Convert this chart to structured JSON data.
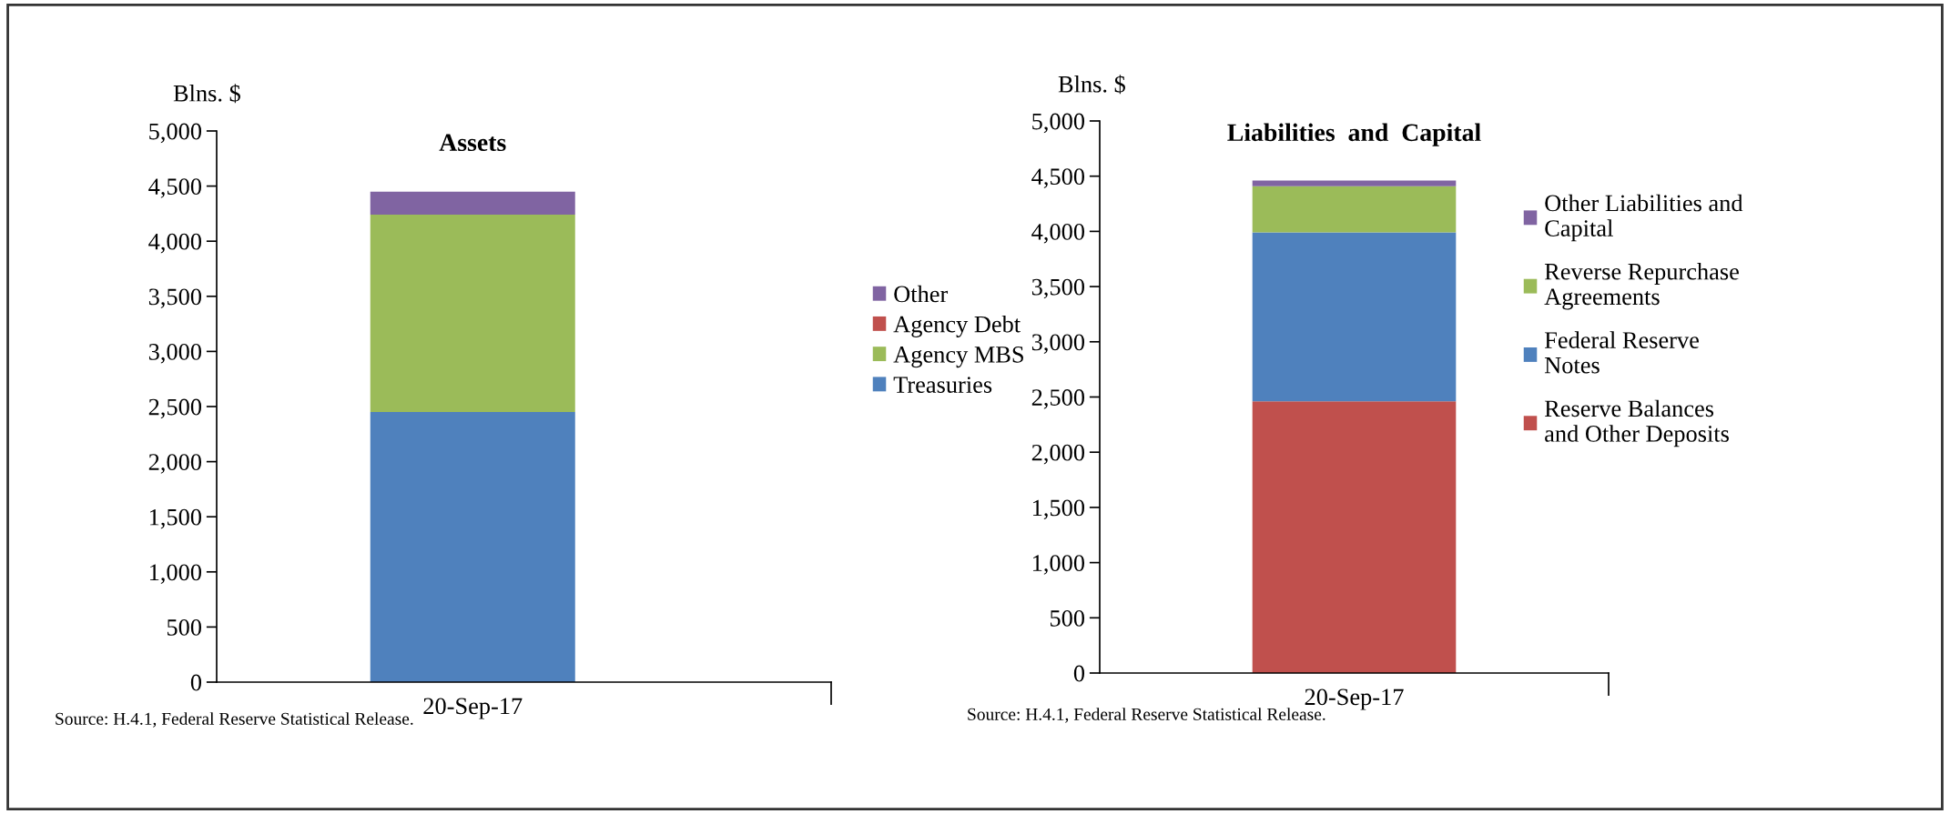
{
  "chart_data": [
    {
      "type": "bar",
      "title": "Assets",
      "ylabel": "Blns. $",
      "categories": [
        "20-Sep-17"
      ],
      "stacked": true,
      "ylim": [
        0,
        5000
      ],
      "yticks": [
        {
          "value": 0,
          "label": "0"
        },
        {
          "value": 500,
          "label": "500"
        },
        {
          "value": 1000,
          "label": "1,000"
        },
        {
          "value": 1500,
          "label": "1,500"
        },
        {
          "value": 2000,
          "label": "2,000"
        },
        {
          "value": 2500,
          "label": "2,500"
        },
        {
          "value": 3000,
          "label": "3,000"
        },
        {
          "value": 3500,
          "label": "3,500"
        },
        {
          "value": 4000,
          "label": "4,000"
        },
        {
          "value": 4500,
          "label": "4,500"
        },
        {
          "value": 5000,
          "label": "5,000"
        }
      ],
      "series": [
        {
          "name": "Treasuries",
          "color": "#4f81bd",
          "values": [
            2450
          ]
        },
        {
          "name": "Agency MBS",
          "color": "#9bbb59",
          "values": [
            1790
          ]
        },
        {
          "name": "Agency Debt",
          "color": "#c0504d",
          "values": [
            null
          ]
        },
        {
          "name": "Other",
          "color": "#8064a2",
          "values": [
            210
          ]
        }
      ],
      "legend": "right",
      "grid": false,
      "annotations": [
        "Source: H.4.1, Federal Reserve Statistical Release."
      ]
    },
    {
      "type": "bar",
      "title": "Liabilities  and  Capital",
      "ylabel": "Blns. $",
      "categories": [
        "20-Sep-17"
      ],
      "stacked": true,
      "ylim": [
        0,
        5000
      ],
      "yticks": [
        {
          "value": 0,
          "label": "0"
        },
        {
          "value": 500,
          "label": "500"
        },
        {
          "value": 1000,
          "label": "1,000"
        },
        {
          "value": 1500,
          "label": "1,500"
        },
        {
          "value": 2000,
          "label": "2,000"
        },
        {
          "value": 2500,
          "label": "2,500"
        },
        {
          "value": 3000,
          "label": "3,000"
        },
        {
          "value": 3500,
          "label": "3,500"
        },
        {
          "value": 4000,
          "label": "4,000"
        },
        {
          "value": 4500,
          "label": "4,500"
        },
        {
          "value": 5000,
          "label": "5,000"
        }
      ],
      "series": [
        {
          "name": "Reserve Balances\nand Other Deposits",
          "color": "#c0504d",
          "values": [
            2460
          ]
        },
        {
          "name": "Federal Reserve\nNotes",
          "color": "#4f81bd",
          "values": [
            1530
          ]
        },
        {
          "name": "Reverse Repurchase\nAgreements",
          "color": "#9bbb59",
          "values": [
            420
          ]
        },
        {
          "name": "Other Liabilities and\nCapital",
          "color": "#8064a2",
          "values": [
            50
          ]
        }
      ],
      "legend": "right",
      "grid": false,
      "annotations": [
        "Source: H.4.1, Federal Reserve Statistical Release."
      ]
    }
  ]
}
